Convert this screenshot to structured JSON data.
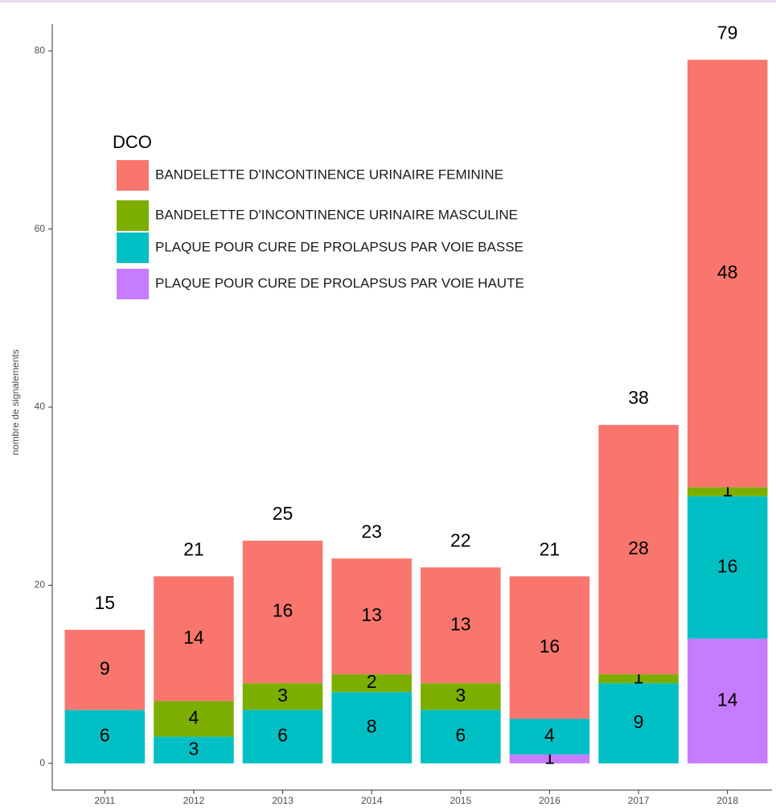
{
  "chart_data": {
    "type": "stacked_bar",
    "y_label": "nombre de signalements",
    "legend_title": "DCO",
    "categories": [
      "2011",
      "2012",
      "2013",
      "2014",
      "2015",
      "2016",
      "2017",
      "2018"
    ],
    "series": [
      {
        "name": "PLAQUE POUR CURE DE PROLAPSUS PAR VOIE HAUTE",
        "color": "#c77cff",
        "values": [
          null,
          null,
          null,
          null,
          null,
          1,
          null,
          14
        ]
      },
      {
        "name": "PLAQUE POUR CURE DE PROLAPSUS PAR VOIE BASSE",
        "color": "#00bfc4",
        "values": [
          6,
          3,
          6,
          8,
          6,
          4,
          9,
          16
        ]
      },
      {
        "name": "BANDELETTE D'INCONTINENCE URINAIRE MASCULINE",
        "color": "#7cae00",
        "values": [
          null,
          4,
          3,
          2,
          3,
          null,
          1,
          1
        ]
      },
      {
        "name": "BANDELETTE D'INCONTINENCE URINAIRE FEMININE",
        "color": "#f8766d",
        "values": [
          9,
          14,
          16,
          13,
          13,
          16,
          28,
          48
        ]
      }
    ],
    "totals": [
      15,
      21,
      25,
      23,
      22,
      21,
      38,
      79
    ],
    "ylim": [
      -3,
      83
    ],
    "yticks": [
      0,
      20,
      40,
      60,
      80
    ],
    "legend_order": [
      3,
      2,
      1,
      0
    ]
  }
}
